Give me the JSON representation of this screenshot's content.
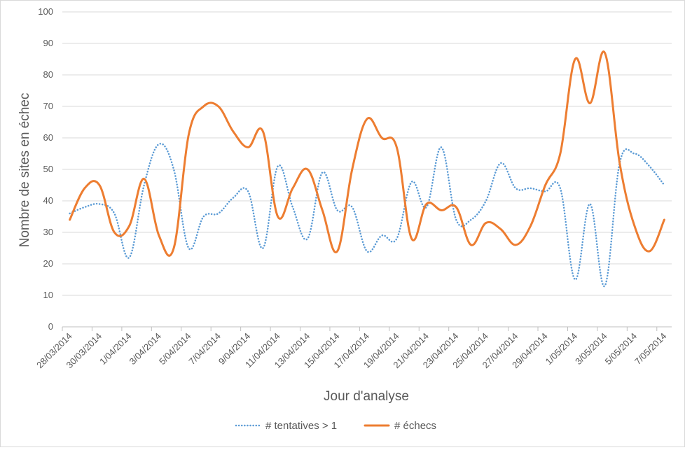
{
  "chart_data": {
    "type": "line",
    "xlabel": "Jour d'analyse",
    "ylabel": "Nombre de sites en échec",
    "ylim": [
      0,
      100
    ],
    "y_ticks": [
      0,
      10,
      20,
      30,
      40,
      50,
      60,
      70,
      80,
      90,
      100
    ],
    "grid": true,
    "legend": "bottom",
    "x": [
      "28/03/2014",
      "29/03/2014",
      "30/03/2014",
      "31/03/2014",
      "1/04/2014",
      "2/04/2014",
      "3/04/2014",
      "4/04/2014",
      "5/04/2014",
      "6/04/2014",
      "7/04/2014",
      "8/04/2014",
      "9/04/2014",
      "10/04/2014",
      "11/04/2014",
      "12/04/2014",
      "13/04/2014",
      "14/04/2014",
      "15/04/2014",
      "16/04/2014",
      "17/04/2014",
      "18/04/2014",
      "19/04/2014",
      "20/04/2014",
      "21/04/2014",
      "22/04/2014",
      "23/04/2014",
      "24/04/2014",
      "25/04/2014",
      "26/04/2014",
      "27/04/2014",
      "28/04/2014",
      "29/04/2014",
      "30/04/2014",
      "1/05/2014",
      "2/05/2014",
      "3/05/2014",
      "4/05/2014",
      "5/05/2014",
      "6/05/2014",
      "7/05/2014"
    ],
    "x_tick_labels": [
      "28/03/2014",
      "30/03/2014",
      "1/04/2014",
      "3/04/2014",
      "5/04/2014",
      "7/04/2014",
      "9/04/2014",
      "11/04/2014",
      "13/04/2014",
      "15/04/2014",
      "17/04/2014",
      "19/04/2014",
      "21/04/2014",
      "23/04/2014",
      "25/04/2014",
      "27/04/2014",
      "29/04/2014",
      "1/05/2014",
      "3/05/2014",
      "5/05/2014",
      "7/05/2014"
    ],
    "series": [
      {
        "name": "# tentatives > 1",
        "color": "#5b9bd5",
        "dash": "dotted",
        "values": [
          36,
          38,
          39,
          36,
          22,
          45,
          58,
          50,
          25,
          35,
          36,
          41,
          43,
          25,
          51,
          38,
          28,
          49,
          37,
          38,
          24,
          29,
          28,
          46,
          38,
          57,
          34,
          34,
          40,
          52,
          44,
          44,
          43,
          44,
          15,
          39,
          13,
          52,
          55,
          51,
          45
        ]
      },
      {
        "name": "# échecs",
        "color": "#ed7d31",
        "dash": "solid",
        "values": [
          34,
          44,
          45,
          30,
          32,
          47,
          29,
          25,
          61,
          70,
          70,
          62,
          57,
          62,
          35,
          44,
          50,
          37,
          24,
          50,
          66,
          60,
          57,
          28,
          39,
          37,
          38,
          26,
          33,
          31,
          26,
          32,
          45,
          55,
          85,
          71,
          87,
          52,
          32,
          24,
          34
        ]
      }
    ]
  }
}
